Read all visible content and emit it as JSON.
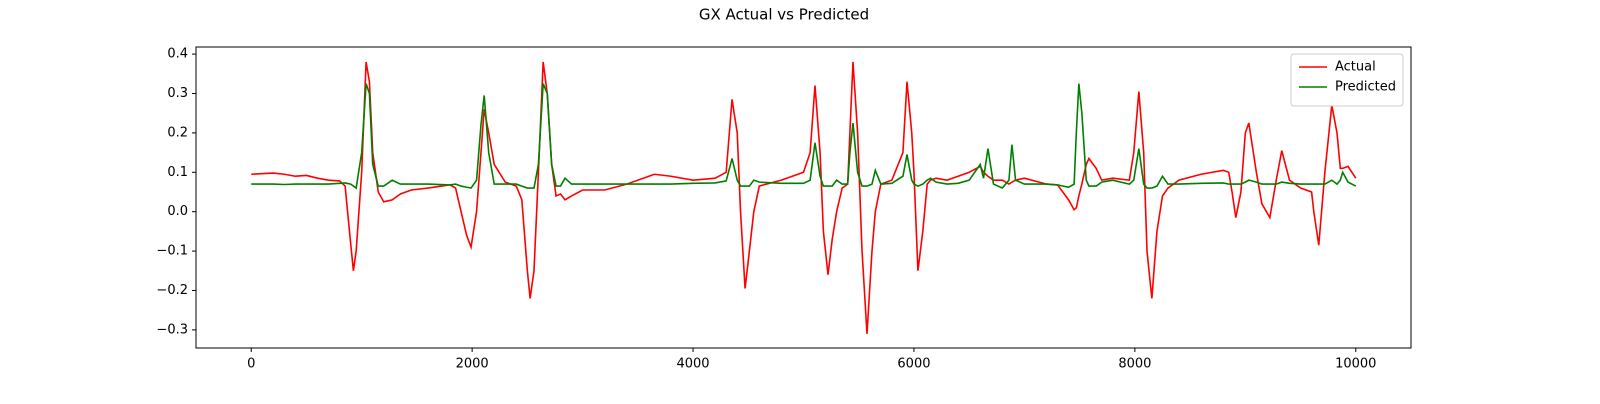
{
  "chart_data": {
    "type": "line",
    "title": "GX Actual vs Predicted",
    "x": [
      0,
      200,
      300,
      400,
      500,
      600,
      700,
      800,
      850,
      900,
      925,
      950,
      1000,
      1040,
      1070,
      1100,
      1150,
      1200,
      1276,
      1350,
      1450,
      1600,
      1800,
      1850,
      1900,
      1950,
      1990,
      2040,
      2080,
      2109,
      2150,
      2200,
      2300,
      2400,
      2450,
      2500,
      2525,
      2560,
      2600,
      2643,
      2680,
      2720,
      2760,
      2800,
      2841,
      2900,
      3000,
      3200,
      3400,
      3600,
      3650,
      3800,
      4000,
      4200,
      4300,
      4353,
      4400,
      4430,
      4471,
      4510,
      4550,
      4600,
      4800,
      5000,
      5060,
      5104,
      5150,
      5180,
      5222,
      5260,
      5300,
      5350,
      5400,
      5420,
      5448,
      5490,
      5530,
      5575,
      5620,
      5650,
      5700,
      5800,
      5900,
      5937,
      5980,
      6000,
      6036,
      6080,
      6120,
      6150,
      6200,
      6300,
      6400,
      6500,
      6600,
      6630,
      6670,
      6720,
      6800,
      6860,
      6887,
      6920,
      7000,
      7200,
      7300,
      7400,
      7450,
      7470,
      7493,
      7520,
      7560,
      7584,
      7650,
      7700,
      7800,
      7950,
      7990,
      8036,
      8080,
      8110,
      8154,
      8200,
      8250,
      8300,
      8400,
      8600,
      8800,
      8850,
      8880,
      8914,
      8960,
      9000,
      9032,
      9100,
      9150,
      9222,
      9280,
      9330,
      9400,
      9500,
      9600,
      9620,
      9665,
      9720,
      9783,
      9830,
      9860,
      9882,
      9930,
      10000
    ],
    "series": [
      {
        "name": "Actual",
        "color": "#ff0000",
        "values": [
          0.095,
          0.098,
          0.095,
          0.09,
          0.092,
          0.085,
          0.08,
          0.078,
          0.065,
          -0.08,
          -0.15,
          -0.1,
          0.1,
          0.38,
          0.33,
          0.15,
          0.05,
          0.025,
          0.03,
          0.045,
          0.055,
          0.06,
          0.068,
          0.06,
          0,
          -0.06,
          -0.09,
          0,
          0.15,
          0.26,
          0.2,
          0.12,
          0.075,
          0.065,
          0.03,
          -0.15,
          -0.22,
          -0.15,
          0.1,
          0.38,
          0.3,
          0.12,
          0.04,
          0.045,
          0.03,
          0.04,
          0.055,
          0.055,
          0.07,
          0.09,
          0.095,
          0.09,
          0.08,
          0.085,
          0.1,
          0.285,
          0.2,
          0,
          -0.195,
          -0.1,
          0,
          0.065,
          0.08,
          0.1,
          0.15,
          0.32,
          0.15,
          -0.05,
          -0.16,
          -0.07,
          0,
          0.06,
          0.07,
          0.2,
          0.38,
          0.2,
          -0.1,
          -0.31,
          -0.1,
          0,
          0.07,
          0.08,
          0.15,
          0.33,
          0.2,
          0.1,
          -0.15,
          -0.05,
          0.07,
          0.08,
          0.085,
          0.08,
          0.09,
          0.1,
          0.115,
          0.1,
          0.09,
          0.08,
          0.08,
          0.07,
          0.075,
          0.08,
          0.085,
          0.07,
          0.068,
          0.03,
          0.005,
          0.01,
          0.04,
          0.07,
          0.12,
          0.135,
          0.11,
          0.08,
          0.085,
          0.08,
          0.15,
          0.305,
          0.15,
          -0.1,
          -0.22,
          -0.05,
          0.04,
          0.06,
          0.08,
          0.095,
          0.105,
          0.1,
          0.05,
          -0.015,
          0.05,
          0.2,
          0.225,
          0.1,
          0.02,
          -0.015,
          0.08,
          0.155,
          0.08,
          0.06,
          0.05,
          0,
          -0.085,
          0.1,
          0.27,
          0.2,
          0.11,
          0.11,
          0.115,
          0.085
        ]
      },
      {
        "name": "Predicted",
        "color": "#008000",
        "values": [
          0.07,
          0.07,
          0.069,
          0.07,
          0.07,
          0.07,
          0.07,
          0.072,
          0.073,
          0.07,
          0.065,
          0.06,
          0.15,
          0.325,
          0.3,
          0.12,
          0.065,
          0.065,
          0.08,
          0.07,
          0.07,
          0.07,
          0.068,
          0.07,
          0.065,
          0.062,
          0.06,
          0.08,
          0.22,
          0.295,
          0.15,
          0.07,
          0.07,
          0.07,
          0.065,
          0.06,
          0.06,
          0.06,
          0.12,
          0.325,
          0.3,
          0.12,
          0.065,
          0.065,
          0.085,
          0.07,
          0.07,
          0.07,
          0.07,
          0.07,
          0.07,
          0.07,
          0.072,
          0.073,
          0.078,
          0.135,
          0.08,
          0.065,
          0.065,
          0.065,
          0.08,
          0.075,
          0.072,
          0.072,
          0.08,
          0.175,
          0.09,
          0.065,
          0.065,
          0.065,
          0.08,
          0.07,
          0.07,
          0.15,
          0.225,
          0.1,
          0.065,
          0.065,
          0.07,
          0.105,
          0.07,
          0.072,
          0.09,
          0.145,
          0.08,
          0.07,
          0.065,
          0.07,
          0.08,
          0.085,
          0.075,
          0.07,
          0.072,
          0.08,
          0.12,
          0.085,
          0.16,
          0.07,
          0.06,
          0.08,
          0.17,
          0.08,
          0.07,
          0.07,
          0.068,
          0.062,
          0.07,
          0.2,
          0.325,
          0.25,
          0.08,
          0.065,
          0.065,
          0.075,
          0.08,
          0.07,
          0.08,
          0.16,
          0.07,
          0.06,
          0.06,
          0.065,
          0.09,
          0.07,
          0.07,
          0.072,
          0.073,
          0.07,
          0.07,
          0.07,
          0.07,
          0.075,
          0.08,
          0.075,
          0.07,
          0.07,
          0.07,
          0.075,
          0.072,
          0.07,
          0.07,
          0.07,
          0.07,
          0.07,
          0.08,
          0.07,
          0.08,
          0.1,
          0.075,
          0.065
        ]
      }
    ],
    "xlim": [
      -500,
      10500
    ],
    "ylim": [
      -0.346,
      0.418
    ],
    "xticks": [
      0,
      2000,
      4000,
      6000,
      8000,
      10000
    ],
    "yticks": [
      {
        "value": -0.3,
        "label": "−0.3"
      },
      {
        "value": -0.2,
        "label": "−0.2"
      },
      {
        "value": -0.1,
        "label": "−0.1"
      },
      {
        "value": 0,
        "label": "0.0"
      },
      0.1,
      0.2,
      0.3,
      0.4
    ],
    "legend": "upper right",
    "grid": false
  }
}
